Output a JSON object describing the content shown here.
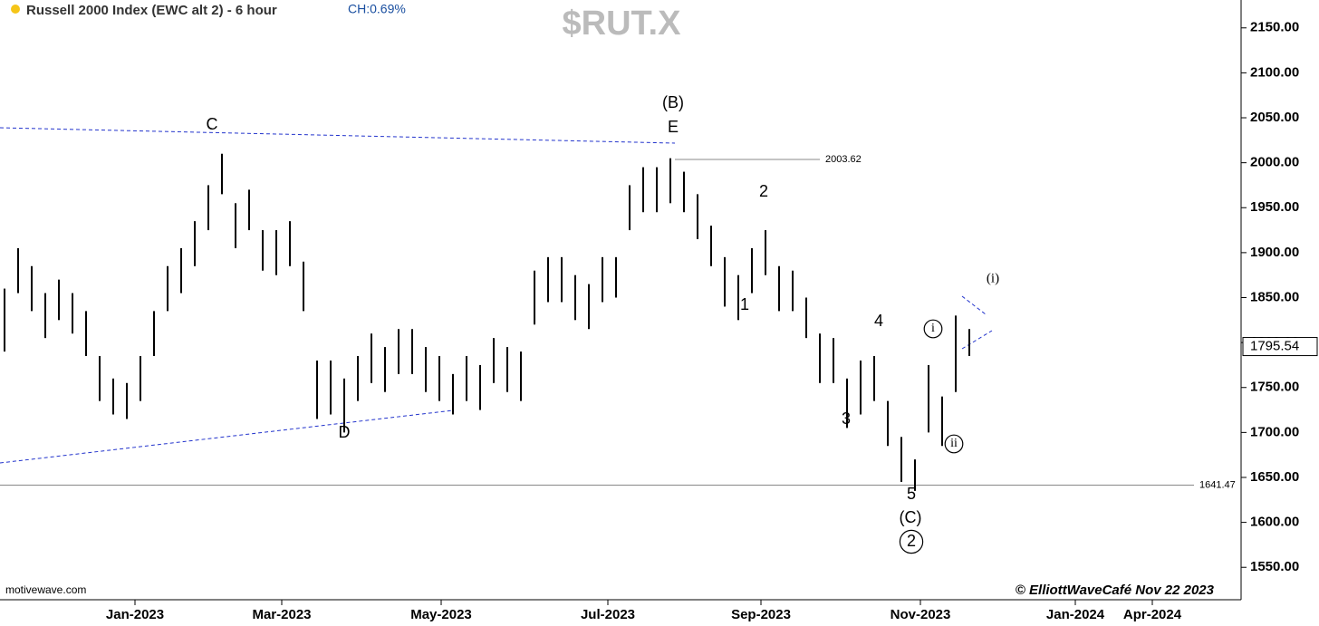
{
  "chart_data": {
    "type": "range-bar",
    "title": "Russell 2000 Index (EWC alt 2) - 6 hour",
    "change_label": "CH:0.69%",
    "symbol": "$RUT.X",
    "source": "motivewave.com",
    "copyright": "© ElliottWaveCafé Nov 22 2023",
    "color": "#000000",
    "high": [
      1860,
      1905,
      1885,
      1855,
      1870,
      1855,
      1835,
      1785,
      1760,
      1755,
      1785,
      1835,
      1885,
      1905,
      1935,
      1975,
      2010,
      1955,
      1970,
      1925,
      1925,
      1935,
      1890,
      1780,
      1780,
      1760,
      1785,
      1810,
      1795,
      1815,
      1815,
      1795,
      1785,
      1765,
      1785,
      1775,
      1805,
      1795,
      1790,
      1880,
      1895,
      1895,
      1875,
      1865,
      1895,
      1895,
      1975,
      1995,
      1995,
      2005,
      1990,
      1965,
      1930,
      1895,
      1875,
      1905,
      1925,
      1885,
      1880,
      1850,
      1810,
      1805,
      1760,
      1780,
      1785,
      1735,
      1695,
      1670,
      1775,
      1740,
      1830,
      1815
    ],
    "low": [
      1790,
      1855,
      1835,
      1805,
      1825,
      1810,
      1785,
      1735,
      1720,
      1715,
      1735,
      1785,
      1835,
      1855,
      1885,
      1925,
      1965,
      1905,
      1925,
      1880,
      1875,
      1885,
      1835,
      1715,
      1720,
      1700,
      1735,
      1755,
      1745,
      1765,
      1765,
      1745,
      1735,
      1720,
      1735,
      1725,
      1755,
      1745,
      1735,
      1820,
      1845,
      1845,
      1825,
      1815,
      1845,
      1850,
      1925,
      1945,
      1945,
      1955,
      1945,
      1915,
      1885,
      1840,
      1825,
      1855,
      1875,
      1835,
      1835,
      1805,
      1755,
      1755,
      1705,
      1720,
      1735,
      1685,
      1645,
      1635,
      1700,
      1685,
      1745,
      1785
    ],
    "ylim": [
      1520,
      2180
    ],
    "yticks": [
      {
        "value": 1550,
        "label": "1550.00"
      },
      {
        "value": 1600,
        "label": "1600.00"
      },
      {
        "value": 1650,
        "label": "1650.00"
      },
      {
        "value": 1700,
        "label": "1700.00"
      },
      {
        "value": 1750,
        "label": "1750.00"
      },
      {
        "value": 1800,
        "label": "1800.00"
      },
      {
        "value": 1850,
        "label": "1850.00"
      },
      {
        "value": 1900,
        "label": "1900.00"
      },
      {
        "value": 1950,
        "label": "1950.00"
      },
      {
        "value": 2000,
        "label": "2000.00"
      },
      {
        "value": 2050,
        "label": "2050.00"
      },
      {
        "value": 2100,
        "label": "2100.00"
      },
      {
        "value": 2150,
        "label": "2150.00"
      }
    ],
    "x_tick_labels": [
      "Jan-2023",
      "Mar-2023",
      "May-2023",
      "Jul-2023",
      "Sep-2023",
      "Nov-2023",
      "Jan-2024",
      "Apr-2024"
    ],
    "levels": [
      {
        "value": 2003.62,
        "label": "2003.62"
      },
      {
        "value": 1641.47,
        "label": "1641.47"
      }
    ],
    "last_price": {
      "value": 1795.54,
      "label": "1795.54"
    },
    "wave_labels": [
      "C",
      "D",
      "(B)",
      "E",
      "2",
      "1",
      "3",
      "4",
      "5",
      "(C)",
      "2",
      "i",
      "ii",
      "(i)"
    ]
  }
}
